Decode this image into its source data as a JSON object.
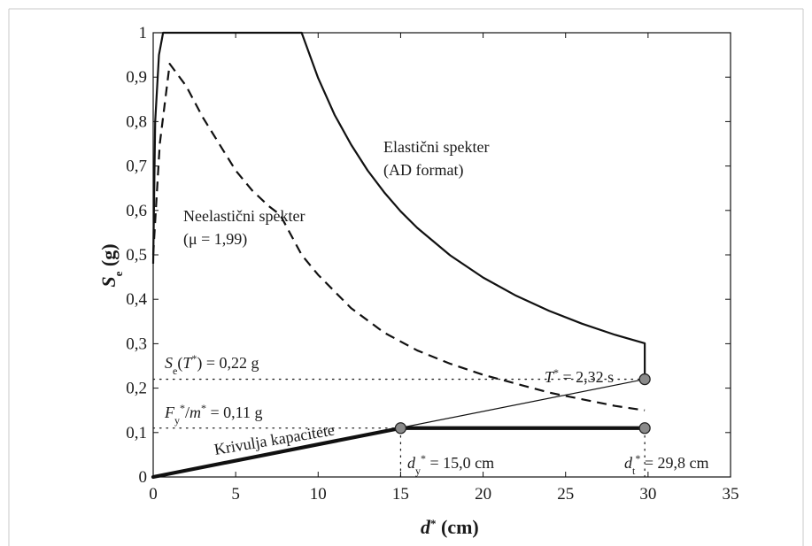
{
  "chart_data": {
    "type": "line",
    "xlabel": {
      "main": "d",
      "sup": "*",
      "unit": " (cm)"
    },
    "ylabel": {
      "main": "S",
      "sub": "e",
      "unit": " (g)"
    },
    "xlim": [
      0,
      35
    ],
    "ylim": [
      0,
      1
    ],
    "xticks": [
      "0",
      "5",
      "10",
      "15",
      "20",
      "25",
      "30",
      "35"
    ],
    "yticks": [
      "0",
      "0,1",
      "0,2",
      "0,3",
      "0,4",
      "0,5",
      "0,6",
      "0,7",
      "0,8",
      "0,9",
      "1"
    ],
    "grid": false,
    "series": [
      {
        "name": "Elastični spekter (AD format)",
        "style": "solid",
        "x": [
          0,
          0.12,
          0.35,
          0.6,
          9.0,
          10,
          11,
          12,
          13,
          14,
          15,
          16,
          18,
          20,
          22,
          24,
          26,
          28,
          29.8,
          29.8
        ],
        "y": [
          0.48,
          0.8,
          0.95,
          1.0,
          1.0,
          0.898,
          0.815,
          0.748,
          0.69,
          0.641,
          0.598,
          0.561,
          0.499,
          0.449,
          0.408,
          0.374,
          0.345,
          0.32,
          0.301,
          0.22
        ]
      },
      {
        "name": "Neelastični spekter (μ = 1,99)",
        "style": "dashed",
        "x": [
          0,
          0.4,
          1.0,
          2,
          3,
          4,
          5,
          6,
          7,
          7.7,
          9,
          10,
          12,
          14,
          16,
          18,
          20,
          22,
          24,
          26,
          28,
          29.8
        ],
        "y": [
          0.5,
          0.75,
          0.93,
          0.88,
          0.81,
          0.75,
          0.69,
          0.645,
          0.61,
          0.59,
          0.5,
          0.455,
          0.38,
          0.325,
          0.285,
          0.255,
          0.23,
          0.21,
          0.19,
          0.175,
          0.16,
          0.15
        ]
      },
      {
        "name": "Krivulja kapacitete",
        "style": "thick",
        "x": [
          0,
          15.0,
          29.8
        ],
        "y": [
          0,
          0.11,
          0.11
        ]
      },
      {
        "name": "T* = 2,32 s",
        "style": "thin",
        "x": [
          0,
          29.8
        ],
        "y": [
          0,
          0.22
        ]
      }
    ],
    "reference_lines": [
      {
        "orientation": "horizontal",
        "value": 0.22,
        "from": 0,
        "to": 29.8
      },
      {
        "orientation": "horizontal",
        "value": 0.11,
        "from": 0,
        "to": 15.0
      },
      {
        "orientation": "vertical",
        "value": 15.0,
        "from": 0,
        "to": 0.11
      },
      {
        "orientation": "vertical",
        "value": 29.8,
        "from": 0,
        "to": 0.11
      }
    ],
    "points": [
      {
        "x": 15.0,
        "y": 0.11
      },
      {
        "x": 29.8,
        "y": 0.11
      },
      {
        "x": 29.8,
        "y": 0.22
      }
    ],
    "annotations": {
      "elastic_line1": "Elastični spekter",
      "elastic_line2": "(AD format)",
      "inelastic_line1": "Neelastični spekter",
      "inelastic_line2": "(μ = 1,99)",
      "se_label": {
        "a": "S",
        "sub": "e",
        "b": "(",
        "c": "T",
        "sup": "*",
        "d": ") = 0,22 g"
      },
      "fy_label": {
        "a": "F",
        "sub": "y",
        "sup1": "*",
        "b": "/",
        "c": "m",
        "sup2": "*",
        "d": " = 0,11 g"
      },
      "capacity": "Krivulja kapacitete",
      "period": {
        "a": "T",
        "sup": "*",
        "b": " = 2,32 s"
      },
      "dy_label": {
        "a": "d",
        "sub": "y",
        "sup": "*",
        "b": " = 15,0 cm"
      },
      "dt_label": {
        "a": "d",
        "sub": "t",
        "sup": "*",
        "b": " = 29,8 cm"
      }
    }
  }
}
